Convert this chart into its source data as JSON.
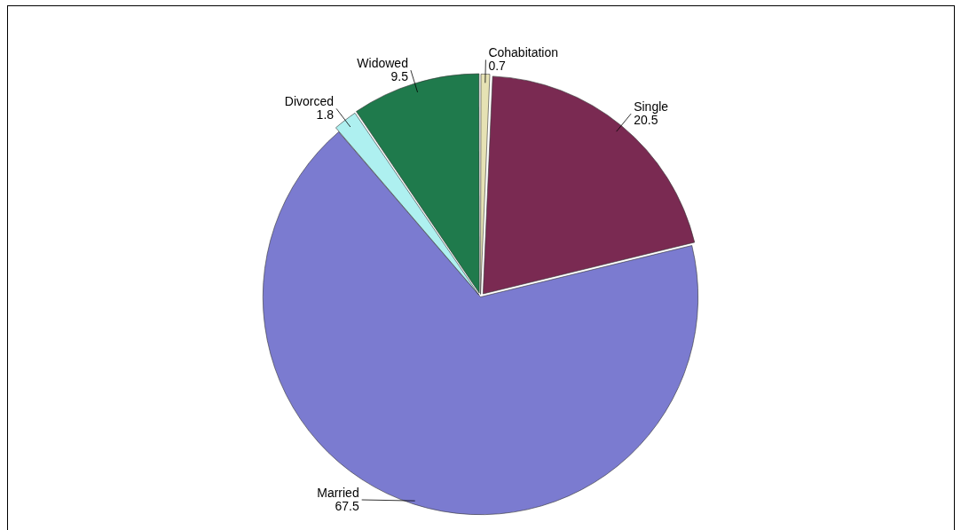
{
  "chart_data": {
    "type": "pie",
    "categories": [
      "Cohabitation",
      "Single",
      "Married",
      "Divorced",
      "Widowed"
    ],
    "values": [
      0.7,
      20.5,
      67.5,
      1.8,
      9.5
    ],
    "colors": [
      "#e6e2b4",
      "#7a2a52",
      "#7b7bd0",
      "#aef0f0",
      "#1f7a4c"
    ],
    "data_labels": true,
    "legend": false
  }
}
